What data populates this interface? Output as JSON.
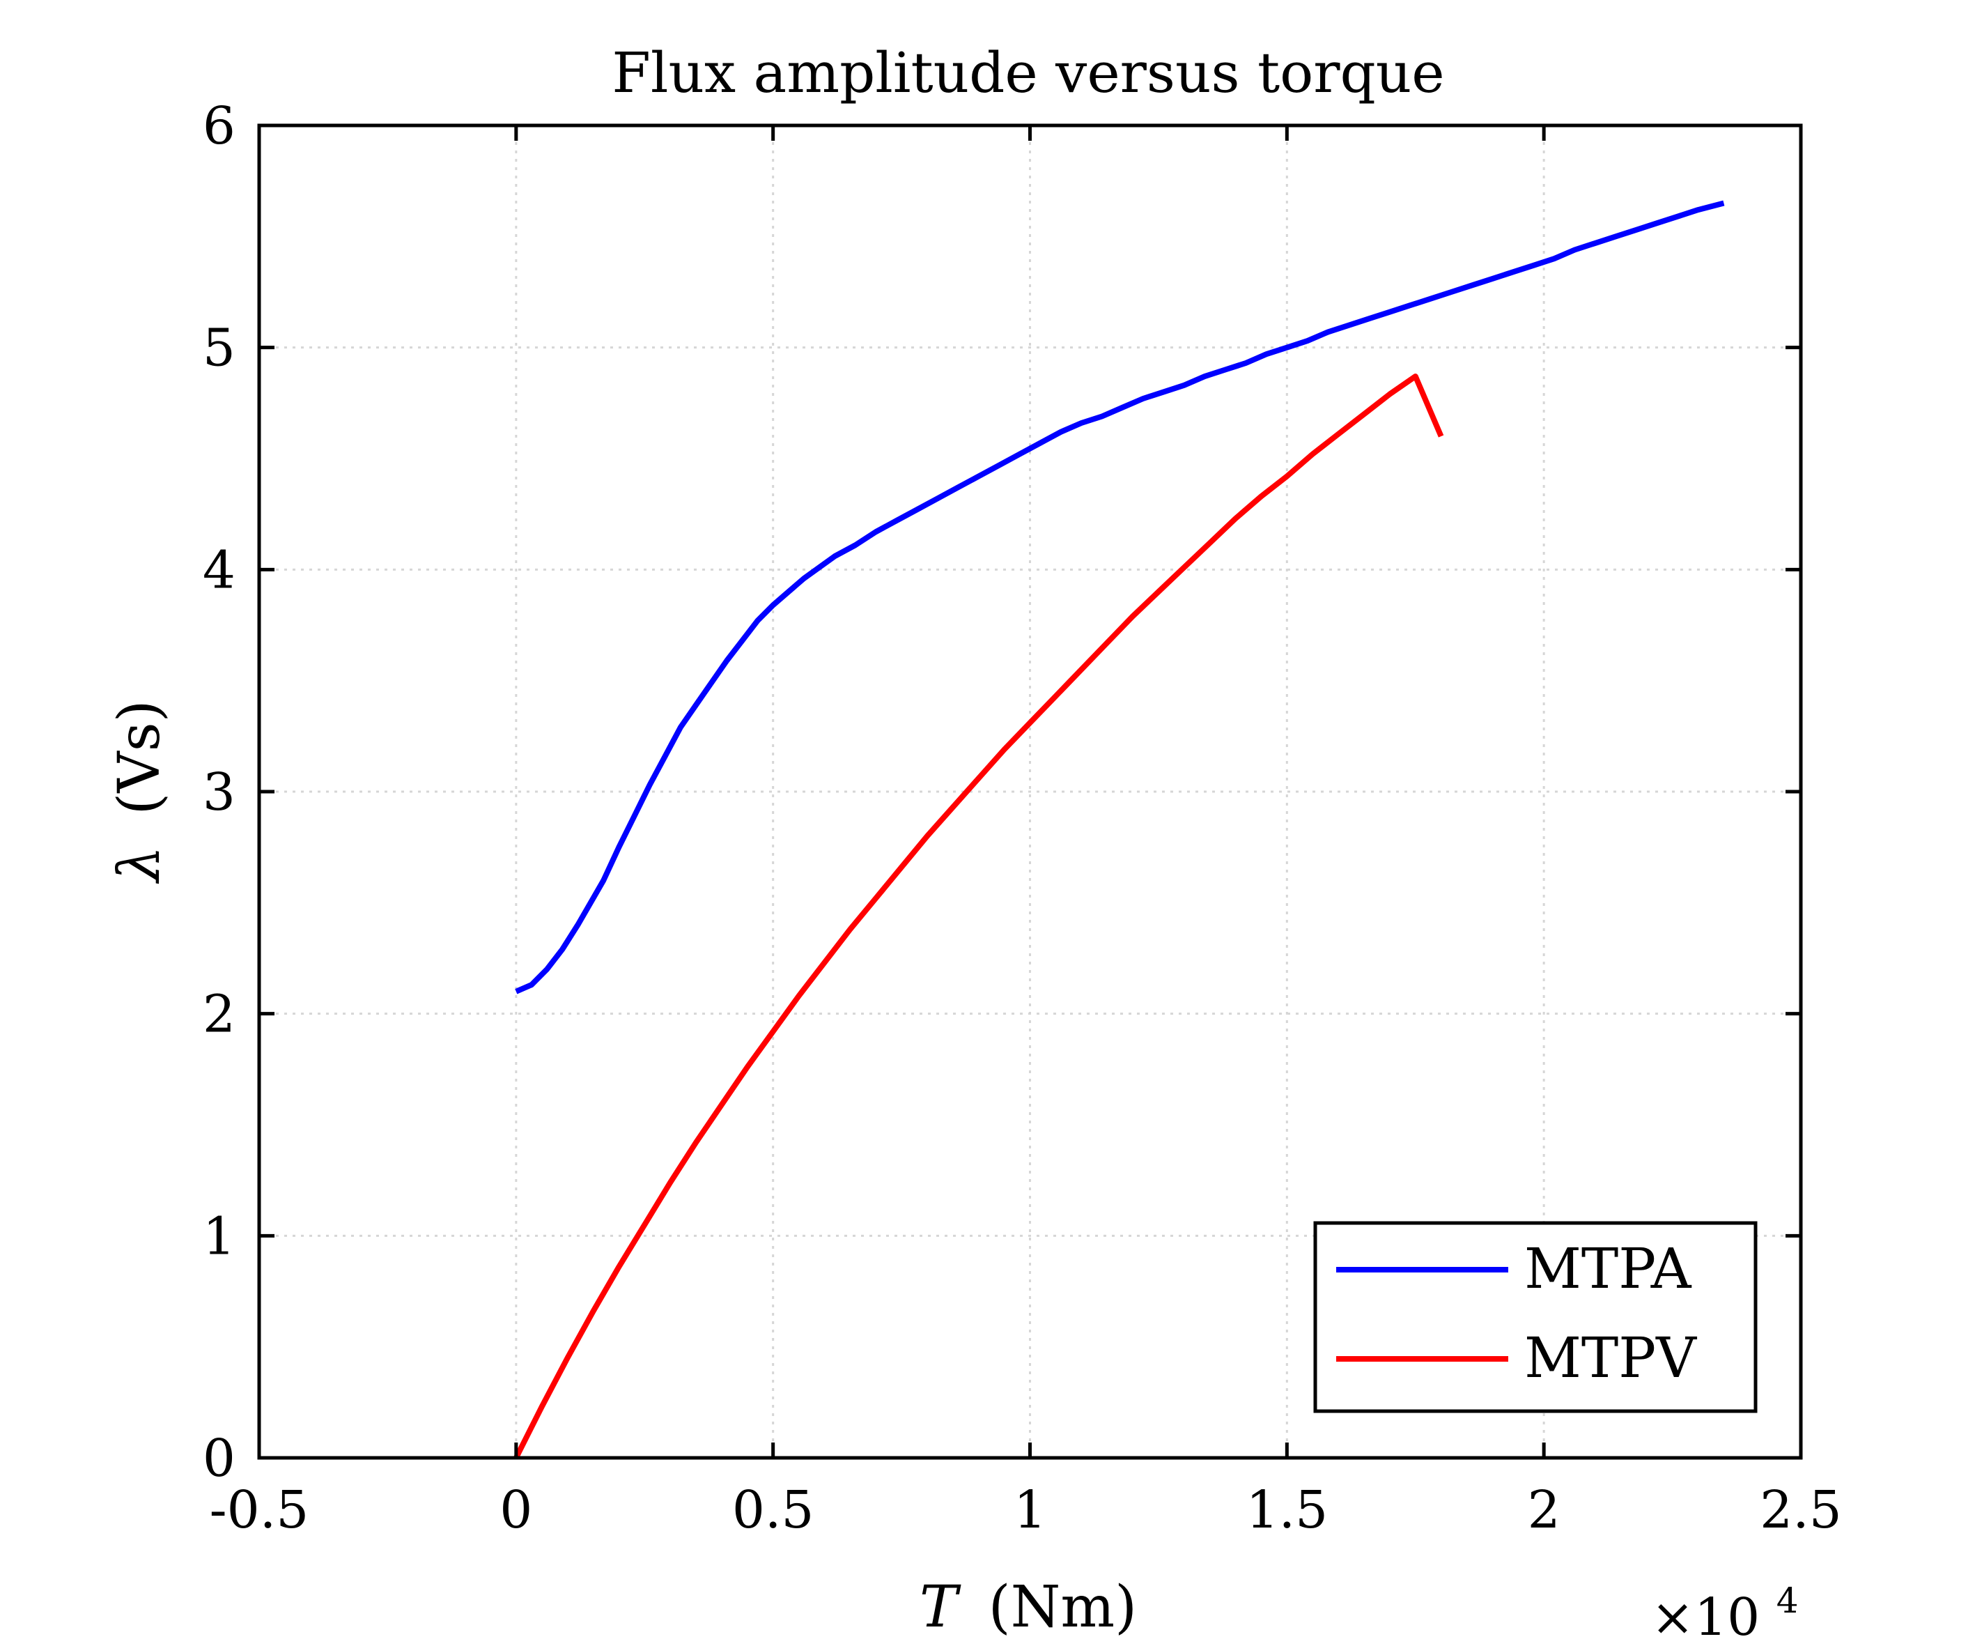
{
  "chart_data": {
    "type": "line",
    "title": "Flux amplitude versus torque",
    "xlabel_symbol": "T",
    "xlabel_unit": "(Nm)",
    "ylabel_symbol": "λ",
    "ylabel_unit": "(Vs)",
    "x_exponent_base": "×10",
    "x_exponent_power": "4",
    "xlim": [
      -0.5,
      2.5
    ],
    "ylim": [
      0,
      6
    ],
    "xticks": [
      -0.5,
      0,
      0.5,
      1,
      1.5,
      2,
      2.5
    ],
    "xtick_labels": [
      "-0.5",
      "0",
      "0.5",
      "1",
      "1.5",
      "2",
      "2.5"
    ],
    "yticks": [
      0,
      1,
      2,
      3,
      4,
      5,
      6
    ],
    "ytick_labels": [
      "0",
      "1",
      "2",
      "3",
      "4",
      "5",
      "6"
    ],
    "grid": true,
    "legend_position": "bottom-right",
    "series": [
      {
        "name": "MTPA",
        "color": "#0000ff",
        "x": [
          0,
          0.03,
          0.06,
          0.09,
          0.12,
          0.15,
          0.17,
          0.2,
          0.23,
          0.26,
          0.29,
          0.32,
          0.35,
          0.38,
          0.41,
          0.44,
          0.47,
          0.5,
          0.53,
          0.56,
          0.59,
          0.62,
          0.66,
          0.7,
          0.74,
          0.78,
          0.82,
          0.86,
          0.9,
          0.94,
          0.98,
          1.02,
          1.06,
          1.1,
          1.14,
          1.18,
          1.22,
          1.26,
          1.3,
          1.34,
          1.38,
          1.42,
          1.46,
          1.5,
          1.54,
          1.58,
          1.62,
          1.66,
          1.7,
          1.74,
          1.78,
          1.82,
          1.86,
          1.9,
          1.94,
          1.98,
          2.02,
          2.06,
          2.1,
          2.14,
          2.18,
          2.22,
          2.26,
          2.3,
          2.35
        ],
        "y": [
          2.1,
          2.13,
          2.2,
          2.29,
          2.4,
          2.52,
          2.6,
          2.75,
          2.89,
          3.03,
          3.16,
          3.29,
          3.39,
          3.49,
          3.59,
          3.68,
          3.77,
          3.84,
          3.9,
          3.96,
          4.01,
          4.06,
          4.11,
          4.17,
          4.22,
          4.27,
          4.32,
          4.37,
          4.42,
          4.47,
          4.52,
          4.57,
          4.62,
          4.66,
          4.69,
          4.73,
          4.77,
          4.8,
          4.83,
          4.87,
          4.9,
          4.93,
          4.97,
          5.0,
          5.03,
          5.07,
          5.1,
          5.13,
          5.16,
          5.19,
          5.22,
          5.25,
          5.28,
          5.31,
          5.34,
          5.37,
          5.4,
          5.44,
          5.47,
          5.5,
          5.53,
          5.56,
          5.59,
          5.62,
          5.65
        ]
      },
      {
        "name": "MTPV",
        "color": "#ff0000",
        "x": [
          0,
          0.05,
          0.1,
          0.15,
          0.2,
          0.25,
          0.3,
          0.35,
          0.4,
          0.45,
          0.5,
          0.55,
          0.6,
          0.65,
          0.7,
          0.75,
          0.8,
          0.85,
          0.9,
          0.95,
          1.0,
          1.05,
          1.1,
          1.15,
          1.2,
          1.25,
          1.3,
          1.35,
          1.4,
          1.45,
          1.5,
          1.55,
          1.6,
          1.65,
          1.7,
          1.75,
          1.8
        ],
        "y": [
          0,
          0.23,
          0.45,
          0.66,
          0.86,
          1.05,
          1.24,
          1.42,
          1.59,
          1.76,
          1.92,
          2.08,
          2.23,
          2.38,
          2.52,
          2.66,
          2.8,
          2.93,
          3.06,
          3.19,
          3.31,
          3.43,
          3.55,
          3.67,
          3.79,
          3.9,
          4.01,
          4.12,
          4.23,
          4.33,
          4.42,
          4.52,
          4.61,
          4.7,
          4.79,
          4.87,
          4.6
        ]
      }
    ]
  }
}
